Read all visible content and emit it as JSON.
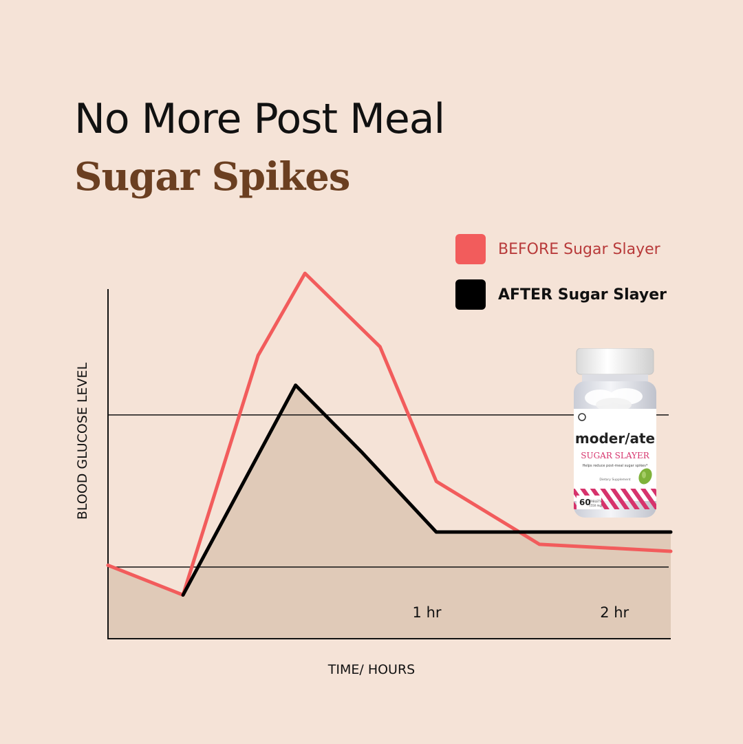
{
  "title": {
    "line1": "No More Post Meal",
    "line2": "Sugar Spikes"
  },
  "chart_data": {
    "type": "line",
    "xlabel": "TIME/ HOURS",
    "ylabel": "BLOOD GLUCOSE LEVEL",
    "x_ticks": [
      {
        "x": 1,
        "label": "1 hr"
      },
      {
        "x": 2,
        "label": "2 hr"
      }
    ],
    "xlim": [
      -0.7,
      2.3
    ],
    "ylim": [
      0,
      100
    ],
    "reference_lines": [
      20.5,
      64
    ],
    "legend_position": "top-right",
    "series": [
      {
        "name": "BEFORE Sugar Slayer",
        "color": "#f25c5c",
        "x": [
          -0.7,
          -0.3,
          0.1,
          0.35,
          0.75,
          1.05,
          1.6,
          2.3
        ],
        "y": [
          21,
          12.5,
          81,
          104.5,
          83.5,
          45,
          27,
          25
        ]
      },
      {
        "name": "AFTER Sugar Slayer",
        "color": "#000000",
        "x": [
          -0.3,
          0.3,
          0.65,
          1.05,
          2.3
        ],
        "y": [
          12.5,
          72.5,
          53.5,
          30.5,
          30.5
        ]
      }
    ]
  },
  "product": {
    "brand": "moder/ate",
    "name": "SUGAR SLAYER",
    "tagline": "Helps reduce post-meal sugar spikes*",
    "type": "Dietary Supplement",
    "count": "60",
    "count_unit": "TABLETS",
    "dose": "(550 mg)",
    "cap_color": "#f2f2f2",
    "accent_color": "#d6336c"
  }
}
